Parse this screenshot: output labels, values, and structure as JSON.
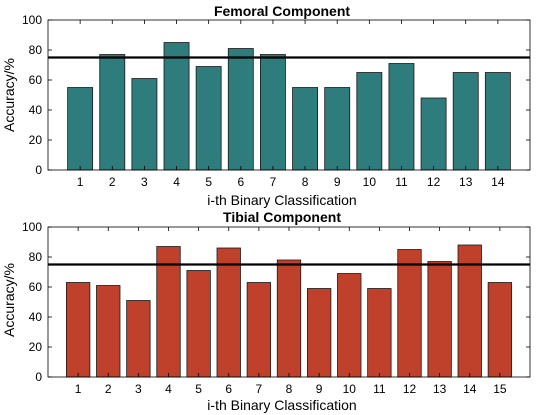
{
  "chart_data": [
    {
      "type": "bar",
      "title": "Femoral Component",
      "xlabel": "i-th Binary Classification",
      "ylabel": "Accuracy/%",
      "categories": [
        "1",
        "2",
        "3",
        "4",
        "5",
        "6",
        "7",
        "8",
        "9",
        "10",
        "11",
        "12",
        "13",
        "14"
      ],
      "values": [
        55,
        77,
        61,
        85,
        69,
        81,
        77,
        55,
        55,
        65,
        71,
        48,
        65,
        65
      ],
      "ylim": [
        0,
        100
      ],
      "yticks": [
        0,
        20,
        40,
        60,
        80,
        100
      ],
      "reference_line": 75,
      "bar_color": "#2f7c7c",
      "grid": false
    },
    {
      "type": "bar",
      "title": "Tibial Component",
      "xlabel": "i-th Binary Classification",
      "ylabel": "Accuracy/%",
      "categories": [
        "1",
        "2",
        "3",
        "4",
        "5",
        "6",
        "7",
        "8",
        "9",
        "10",
        "11",
        "12",
        "13",
        "14",
        "15"
      ],
      "values": [
        63,
        61,
        51,
        87,
        71,
        86,
        63,
        78,
        59,
        69,
        59,
        85,
        77,
        88,
        63
      ],
      "ylim": [
        0,
        100
      ],
      "yticks": [
        0,
        20,
        40,
        60,
        80,
        100
      ],
      "reference_line": 75,
      "bar_color": "#c0412b",
      "grid": false
    }
  ]
}
